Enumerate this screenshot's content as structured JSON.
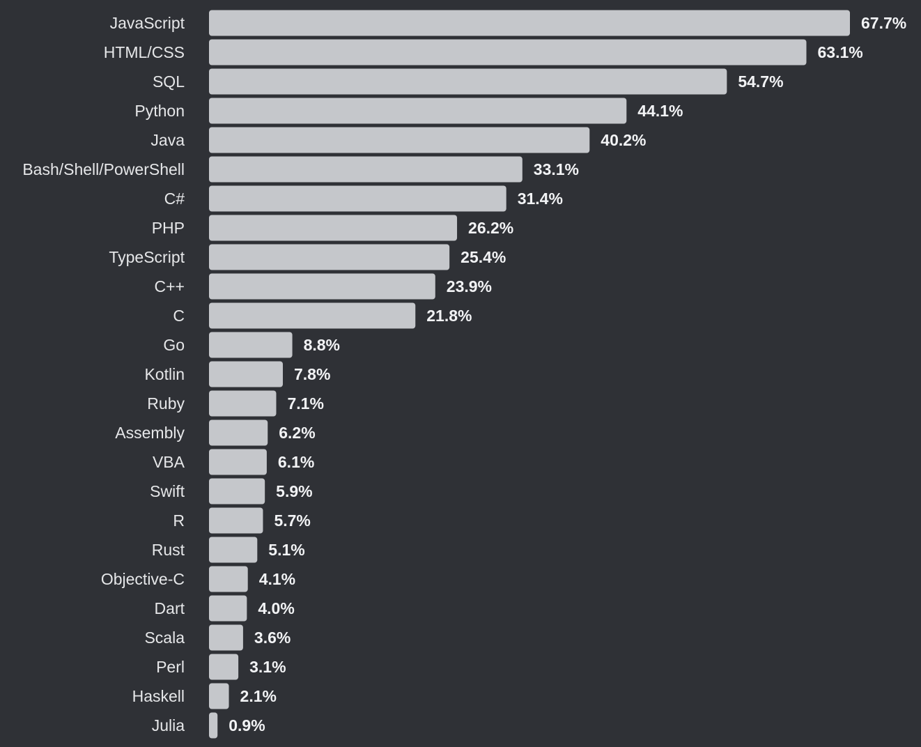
{
  "chart_data": {
    "type": "bar",
    "orientation": "horizontal",
    "categories": [
      "JavaScript",
      "HTML/CSS",
      "SQL",
      "Python",
      "Java",
      "Bash/Shell/PowerShell",
      "C#",
      "PHP",
      "TypeScript",
      "C++",
      "C",
      "Go",
      "Kotlin",
      "Ruby",
      "Assembly",
      "VBA",
      "Swift",
      "R",
      "Rust",
      "Objective-C",
      "Dart",
      "Scala",
      "Perl",
      "Haskell",
      "Julia"
    ],
    "values": [
      67.7,
      63.1,
      54.7,
      44.1,
      40.2,
      33.1,
      31.4,
      26.2,
      25.4,
      23.9,
      21.8,
      8.8,
      7.8,
      7.1,
      6.2,
      6.1,
      5.9,
      5.7,
      5.1,
      4.1,
      4.0,
      3.6,
      3.1,
      2.1,
      0.9
    ],
    "value_labels": [
      "67.7%",
      "63.1%",
      "54.7%",
      "44.1%",
      "40.2%",
      "33.1%",
      "31.4%",
      "26.2%",
      "25.4%",
      "23.9%",
      "21.8%",
      "8.8%",
      "7.8%",
      "7.1%",
      "6.2%",
      "6.1%",
      "5.9%",
      "5.7%",
      "5.1%",
      "4.1%",
      "4.0%",
      "3.6%",
      "3.1%",
      "2.1%",
      "0.9%"
    ],
    "unit": "%",
    "xlim": [
      0,
      67.7
    ],
    "grid": false,
    "legend": "none",
    "title": "",
    "xlabel": "",
    "ylabel": ""
  },
  "colors": {
    "background": "#2f3136",
    "bar": "#c5c7cb",
    "category_text": "#e6e7e9",
    "value_text": "#f2f3f5"
  }
}
